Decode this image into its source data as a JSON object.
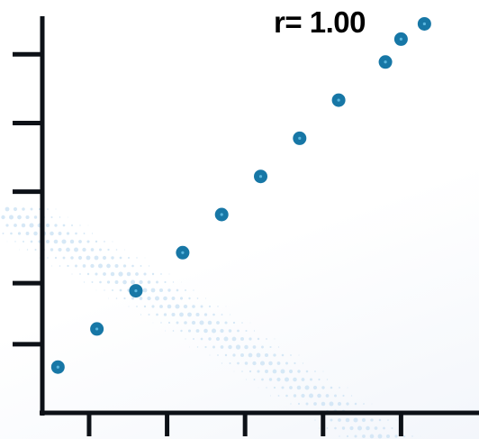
{
  "chart_data": {
    "type": "scatter",
    "title": "",
    "xlabel": "",
    "ylabel": "",
    "annotation": "r= 1.00",
    "xlim": [
      0.4,
      6.0
    ],
    "ylim": [
      0.0,
      5.2
    ],
    "x_ticks": [
      1,
      2,
      3,
      4,
      5
    ],
    "y_ticks": [
      0.9,
      1.7,
      2.9,
      3.8,
      4.7
    ],
    "series": [
      {
        "values": [
          {
            "x": 0.6,
            "y": 0.6
          },
          {
            "x": 1.1,
            "y": 1.1
          },
          {
            "x": 1.6,
            "y": 1.6
          },
          {
            "x": 2.2,
            "y": 2.1
          },
          {
            "x": 2.7,
            "y": 2.6
          },
          {
            "x": 3.2,
            "y": 3.1
          },
          {
            "x": 3.7,
            "y": 3.6
          },
          {
            "x": 4.2,
            "y": 4.1
          },
          {
            "x": 4.8,
            "y": 4.6
          },
          {
            "x": 5.0,
            "y": 4.9
          },
          {
            "x": 5.3,
            "y": 5.1
          }
        ]
      }
    ],
    "grid": false,
    "legend": "none",
    "colors": {
      "point": "#1777a6",
      "point_center": "#5bb7df",
      "axis": "#0d1117",
      "watermark": "#cfe4f4"
    }
  }
}
